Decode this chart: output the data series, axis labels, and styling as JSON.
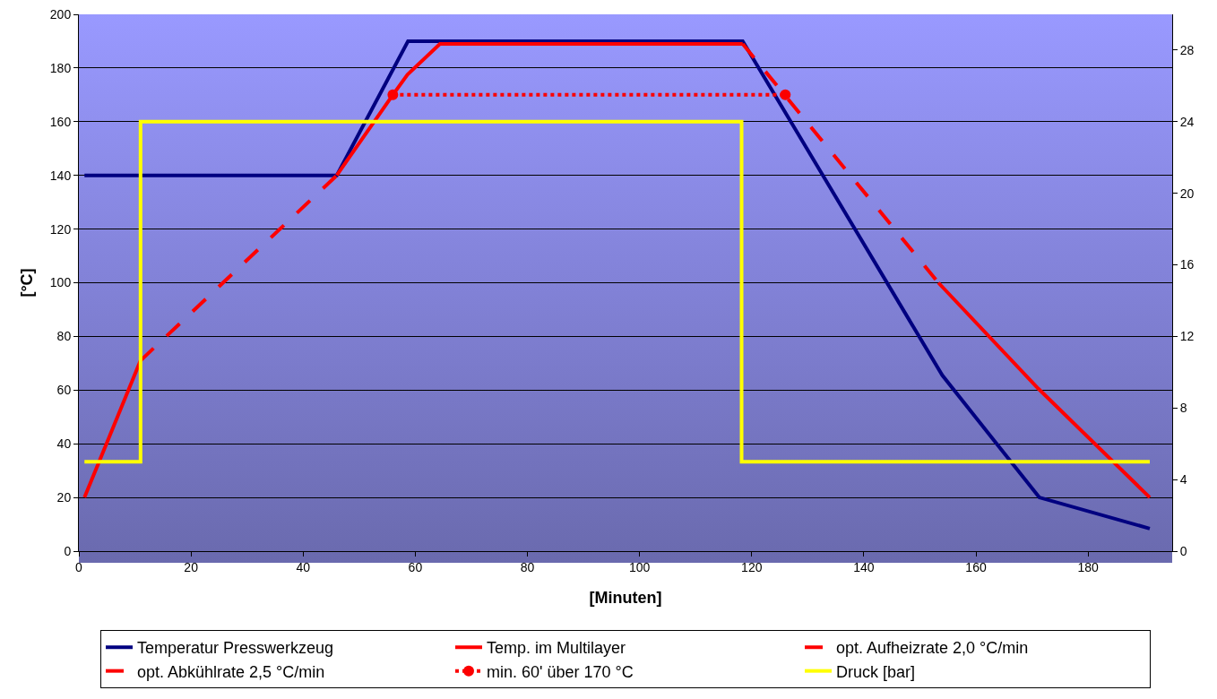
{
  "chart_data": {
    "type": "line",
    "xlabel": "[Minuten]",
    "ylabel": "[°C]",
    "xlim": [
      0,
      195
    ],
    "xticks": [
      0,
      20,
      40,
      60,
      80,
      100,
      120,
      140,
      160,
      180
    ],
    "ylim": [
      0,
      200
    ],
    "yticks": [
      0,
      20,
      40,
      60,
      80,
      100,
      120,
      140,
      160,
      180,
      200
    ],
    "y2lim": [
      0,
      30
    ],
    "y2ticks": [
      0,
      4,
      8,
      12,
      16,
      20,
      24,
      28
    ],
    "grid": "y",
    "legend": "bottom",
    "series": [
      {
        "name": "Temperatur Presswerkzeug",
        "color": "#000080",
        "line_style": "solid",
        "x": [
          1,
          46,
          58.7,
          118.4,
          154,
          171.3,
          191
        ],
        "values": [
          140,
          140,
          190,
          190,
          65.5,
          20,
          8.4
        ]
      },
      {
        "name": "Temp. im Multilayer",
        "color": "#ff0000",
        "line_style": "solid",
        "x": [
          1,
          11,
          null,
          46,
          56,
          58.6,
          64.4,
          118.4,
          null,
          153.3,
          171.1,
          191
        ],
        "values": [
          20,
          71,
          null,
          140,
          170,
          177.5,
          189,
          189,
          null,
          100,
          60.6,
          20
        ]
      },
      {
        "name": "opt. Aufheizrate 2,0 °C/min",
        "color": "#fe0000",
        "line_style": "dashed",
        "x": [
          11,
          46
        ],
        "values": [
          71,
          140
        ]
      },
      {
        "name": "opt. Abkühlrate 2,5 °C/min",
        "color": "#fd0000",
        "line_style": "dashed",
        "x": [
          118.4,
          153.3
        ],
        "values": [
          189,
          100
        ]
      },
      {
        "name": "min. 60' über 170 °C",
        "color": "#fc0000",
        "line_style": "dotted",
        "marker": "circle",
        "x": [
          56,
          126
        ],
        "values": [
          170,
          170
        ]
      },
      {
        "name": "Druck [bar]",
        "color": "#ffff00",
        "line_style": "solid",
        "axis": "y2",
        "x": [
          1,
          11,
          11,
          118.2,
          118.2,
          191
        ],
        "values": [
          5,
          5,
          24,
          24,
          5,
          5
        ]
      }
    ]
  }
}
